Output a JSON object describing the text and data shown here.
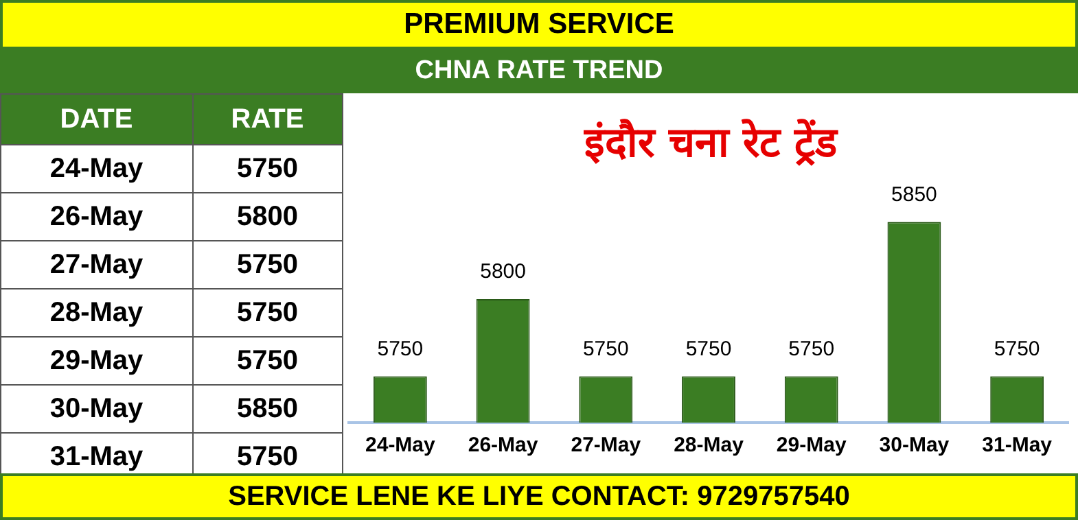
{
  "chart_data": {
    "type": "bar",
    "title": "PREMIUM SERVICE",
    "subtitle": "CHNA RATE TREND",
    "categories": [
      "24-May",
      "26-May",
      "27-May",
      "28-May",
      "29-May",
      "30-May",
      "31-May"
    ],
    "values": [
      5750,
      5800,
      5750,
      5750,
      5750,
      5850,
      5750
    ],
    "value_labels": [
      "5750",
      "5800",
      "5750",
      "5750",
      "5750",
      "5850",
      "5750"
    ],
    "color": "#3b7d23",
    "tick_labels": "x",
    "grid": false,
    "legend": false,
    "data_labels": true,
    "annotations": [
      "इंदौर चना रेट ट्रेंड",
      "DATE",
      "RATE",
      "SERVICE LENE KE LIYE CONTACT: 9729757540"
    ]
  }
}
